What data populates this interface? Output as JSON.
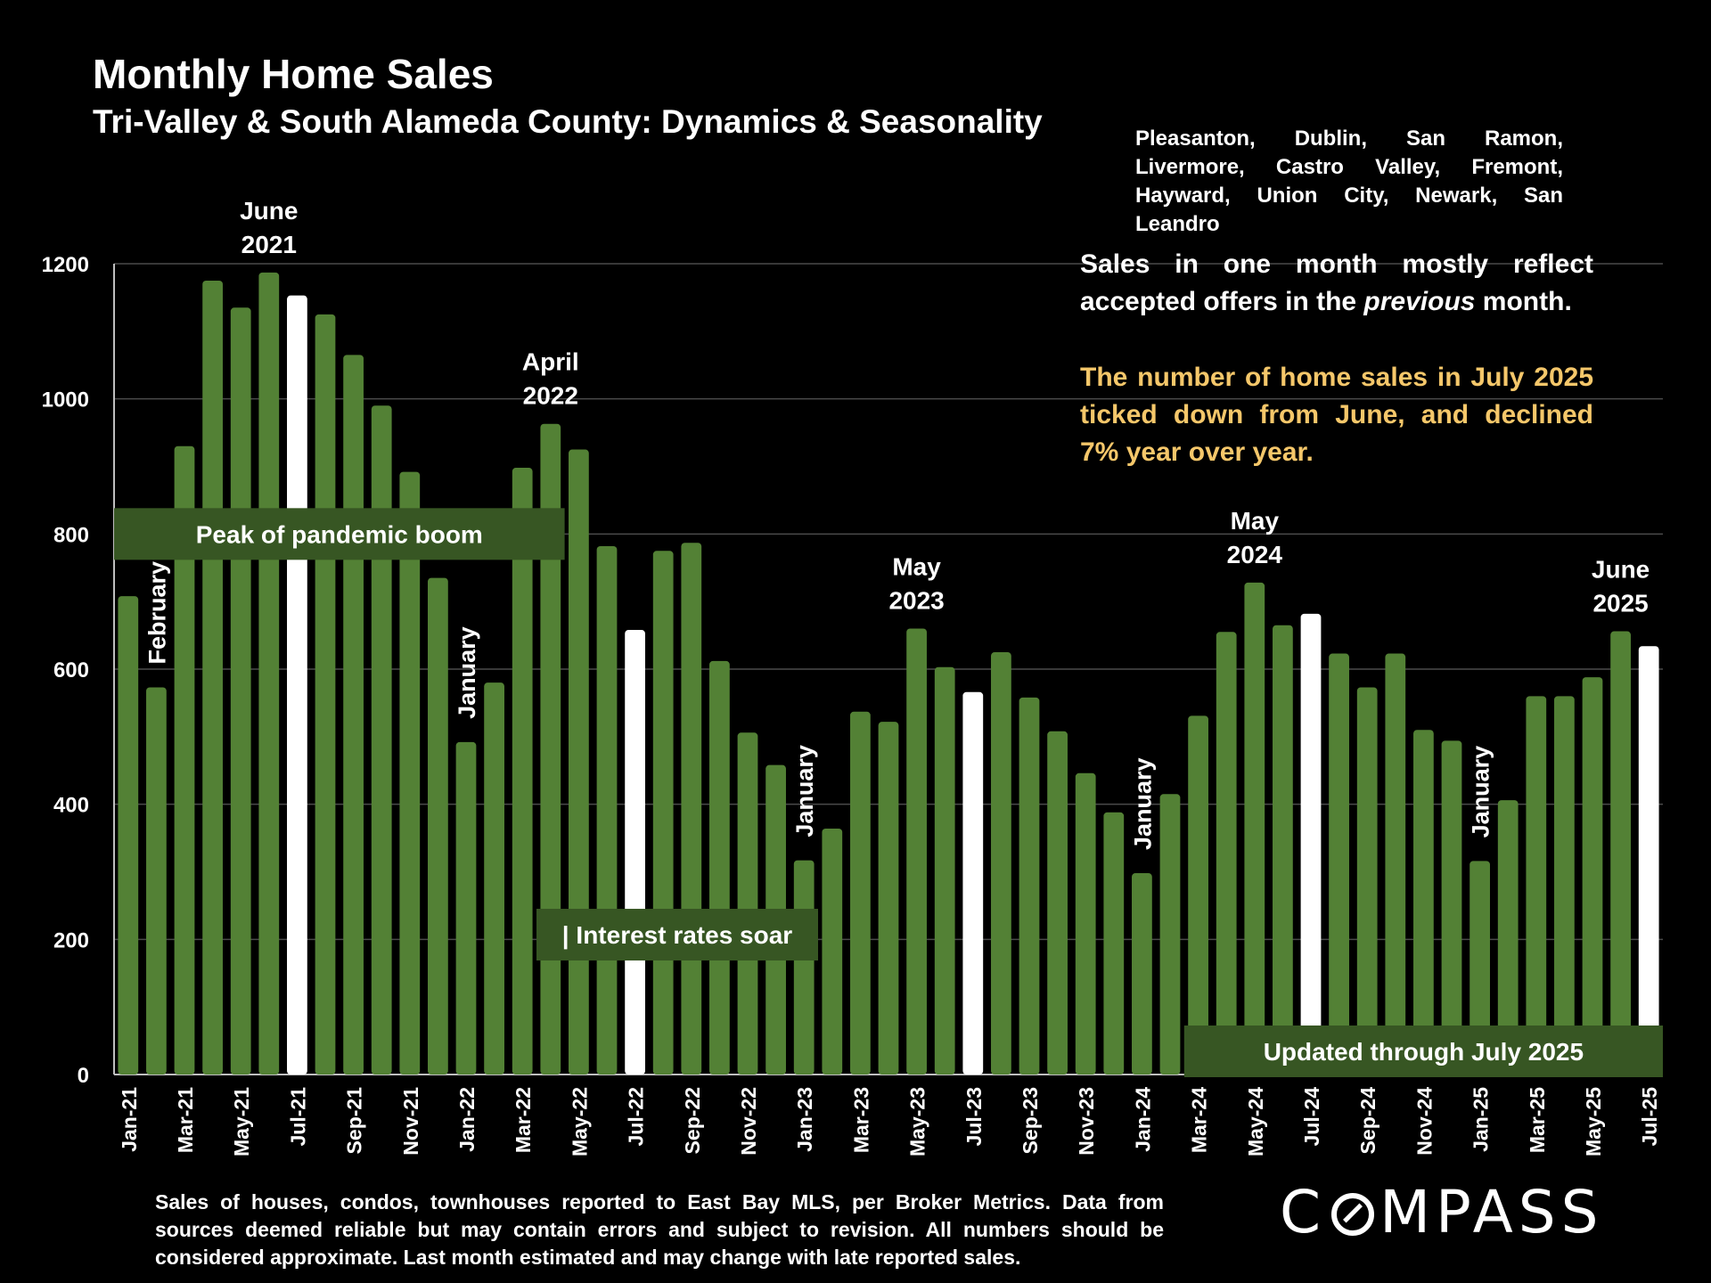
{
  "header": {
    "title": "Monthly Home Sales",
    "subtitle": "Tri-Valley & South Alameda County: Dynamics & Seasonality",
    "cities": "Pleasanton, Dublin, San Ramon, Livermore, Castro Valley, Fremont, Hayward, Union City, Newark, San Leandro"
  },
  "notes": {
    "reflect_pre": "Sales in one month mostly reflect accepted offers in the ",
    "reflect_em": "previous",
    "reflect_post": " month.",
    "summary": "The number of home sales in July 2025 ticked down from June, and declined 7% year over year."
  },
  "footnote": "Sales of houses, condos, townhouses reported to East Bay MLS, per Broker Metrics. Data from sources deemed reliable but may contain errors and subject to revision. All numbers should be considered approximate.  Last month estimated and may change with late reported sales.",
  "logo": {
    "text": "COMPASS"
  },
  "colors": {
    "bar": "#538135",
    "highlight": "#ffffff",
    "banner": "#375623",
    "note_accent": "#f5c76a"
  },
  "chart_data": {
    "type": "bar",
    "title": "Monthly Home Sales",
    "ylim": [
      0,
      1200
    ],
    "yticks": [
      0,
      200,
      400,
      600,
      800,
      1000,
      1200
    ],
    "grid": true,
    "legend": "none",
    "categories": [
      "Jan-21",
      "Feb-21",
      "Mar-21",
      "Apr-21",
      "May-21",
      "Jun-21",
      "Jul-21",
      "Aug-21",
      "Sep-21",
      "Oct-21",
      "Nov-21",
      "Dec-21",
      "Jan-22",
      "Feb-22",
      "Mar-22",
      "Apr-22",
      "May-22",
      "Jun-22",
      "Jul-22",
      "Aug-22",
      "Sep-22",
      "Oct-22",
      "Nov-22",
      "Dec-22",
      "Jan-23",
      "Feb-23",
      "Mar-23",
      "Apr-23",
      "May-23",
      "Jun-23",
      "Jul-23",
      "Aug-23",
      "Sep-23",
      "Oct-23",
      "Nov-23",
      "Dec-23",
      "Jan-24",
      "Feb-24",
      "Mar-24",
      "Apr-24",
      "May-24",
      "Jun-24",
      "Jul-24",
      "Aug-24",
      "Sep-24",
      "Oct-24",
      "Nov-24",
      "Dec-24",
      "Jan-25",
      "Feb-25",
      "Mar-25",
      "Apr-25",
      "May-25",
      "Jun-25",
      "Jul-25"
    ],
    "values": [
      708,
      573,
      930,
      1175,
      1135,
      1187,
      1153,
      1125,
      1065,
      990,
      892,
      735,
      492,
      580,
      898,
      963,
      925,
      782,
      658,
      775,
      787,
      612,
      506,
      458,
      317,
      364,
      537,
      522,
      660,
      603,
      566,
      625,
      558,
      508,
      446,
      388,
      298,
      415,
      531,
      655,
      728,
      665,
      682,
      623,
      573,
      623,
      510,
      494,
      316,
      406,
      560,
      560,
      588,
      656,
      634
    ],
    "highlight_indices": [
      6,
      18,
      30,
      42,
      54
    ],
    "tick_labels": [
      "Jan-21",
      "Mar-21",
      "May-21",
      "Jul-21",
      "Sep-21",
      "Nov-21",
      "Jan-22",
      "Mar-22",
      "May-22",
      "Jul-22",
      "Sep-22",
      "Nov-22",
      "Jan-23",
      "Mar-23",
      "May-23",
      "Jul-23",
      "Sep-23",
      "Nov-23",
      "Jan-24",
      "Mar-24",
      "May-24",
      "Jul-24",
      "Sep-24",
      "Nov-24",
      "Jan-25",
      "Mar-25",
      "May-25",
      "Jul-25"
    ],
    "annotations": [
      {
        "index": 5,
        "lines": [
          "June",
          "2021"
        ],
        "style": "above"
      },
      {
        "index": 15,
        "lines": [
          "April",
          "2022"
        ],
        "style": "above"
      },
      {
        "index": 28,
        "lines": [
          "May",
          "2023"
        ],
        "style": "above"
      },
      {
        "index": 40,
        "lines": [
          "May",
          "2024"
        ],
        "style": "above"
      },
      {
        "index": 53,
        "lines": [
          "June",
          "2025"
        ],
        "style": "above"
      },
      {
        "index": 1,
        "text": "February",
        "style": "vertical"
      },
      {
        "index": 12,
        "text": "January",
        "style": "vertical"
      },
      {
        "index": 24,
        "text": "January",
        "style": "vertical"
      },
      {
        "index": 36,
        "text": "January",
        "style": "vertical"
      },
      {
        "index": 48,
        "text": "January",
        "style": "vertical"
      }
    ],
    "banners": [
      {
        "text": "Peak of pandemic boom",
        "from_index": 0,
        "to_index": 15,
        "level": 800
      },
      {
        "text": "| Interest rates soar",
        "from_index": 15,
        "to_index": 24,
        "level": 207
      },
      {
        "text": "Updated through July 2025",
        "from_index": 38,
        "to_index": 54,
        "level": 0
      }
    ]
  }
}
